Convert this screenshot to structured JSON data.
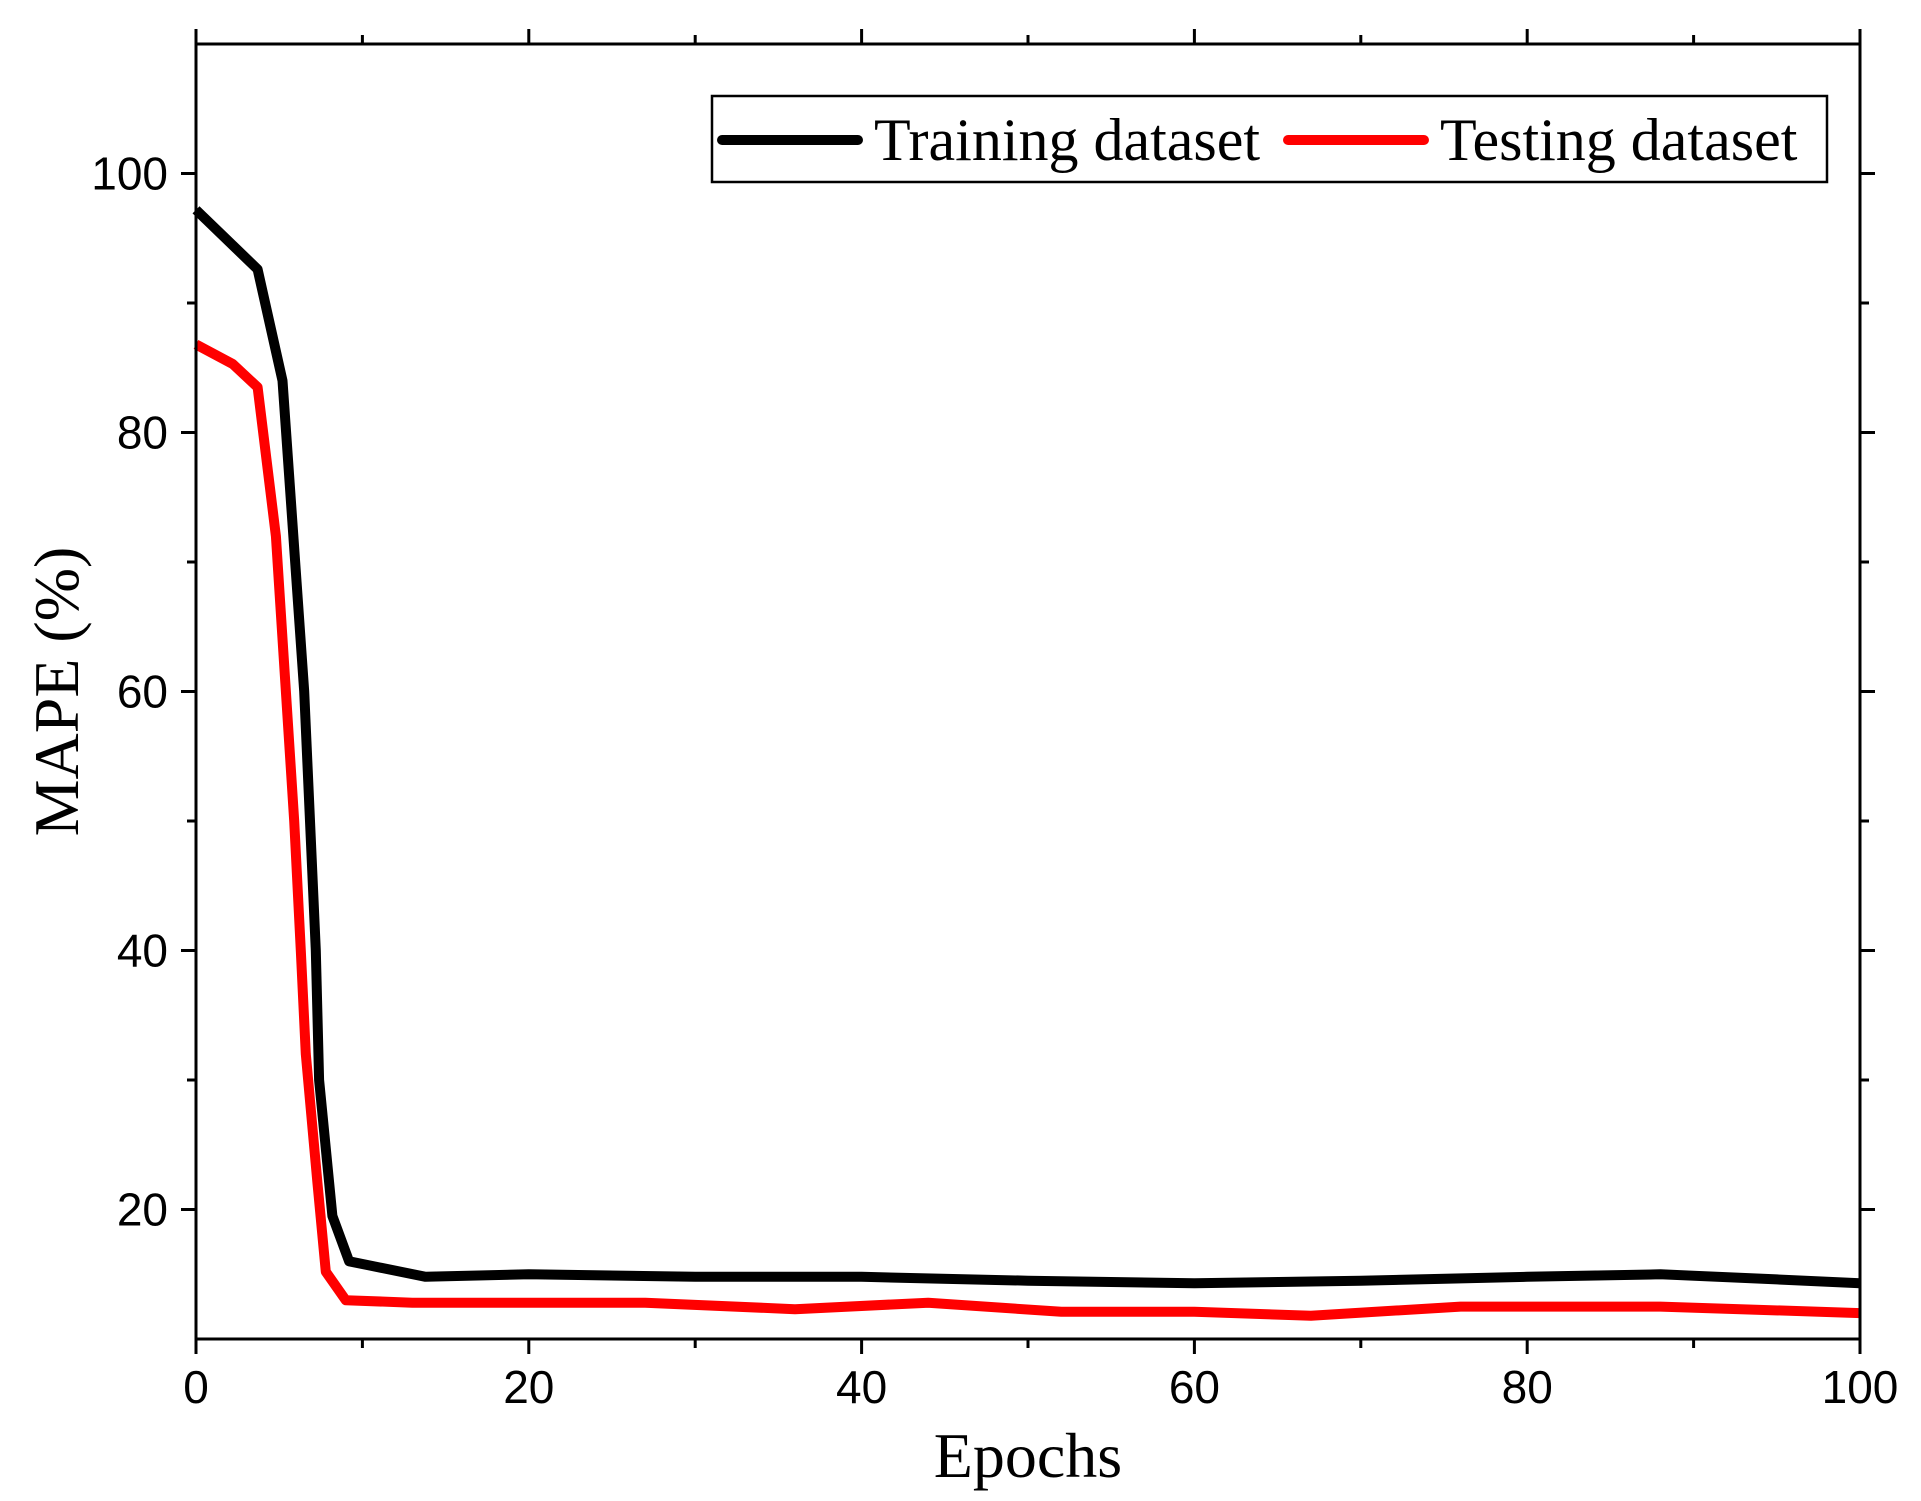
{
  "chart_data": {
    "type": "line",
    "xlabel": "Epochs",
    "ylabel": "MAPE (%)",
    "xlim": [
      0,
      100
    ],
    "ylim": [
      10,
      110
    ],
    "x_ticks": [
      0,
      20,
      40,
      60,
      80,
      100
    ],
    "x_tick_labels": [
      "0",
      "20",
      "40",
      "60",
      "80",
      "100"
    ],
    "y_ticks": [
      20,
      40,
      60,
      80,
      100
    ],
    "y_tick_labels": [
      "20",
      "40",
      "60",
      "80",
      "100"
    ],
    "grid": false,
    "legend_position": "top-right",
    "series": [
      {
        "name": "Training dataset",
        "color": "#000000",
        "x": [
          0,
          3.7,
          5.2,
          6.5,
          7.2,
          7.4,
          8.2,
          9.2,
          13.8,
          20,
          30,
          40,
          50,
          60,
          70,
          80,
          88,
          95,
          100
        ],
        "y": [
          97.2,
          92.6,
          84,
          60,
          40,
          30,
          19.5,
          16,
          14.8,
          15,
          14.8,
          14.8,
          14.5,
          14.3,
          14.5,
          14.8,
          15,
          14.6,
          14.3
        ]
      },
      {
        "name": "Testing dataset",
        "color": "#ff0000",
        "x": [
          0,
          2.2,
          3.7,
          4.8,
          5.9,
          6.3,
          6.6,
          7.3,
          7.8,
          9,
          13,
          20,
          27,
          36,
          44,
          52,
          60,
          67,
          76,
          88,
          100
        ],
        "y": [
          86.8,
          85.3,
          83.5,
          72,
          50,
          40,
          32,
          22,
          15.2,
          13,
          12.8,
          12.8,
          12.8,
          12.3,
          12.8,
          12.1,
          12.1,
          11.8,
          12.5,
          12.5,
          12
        ]
      }
    ]
  }
}
